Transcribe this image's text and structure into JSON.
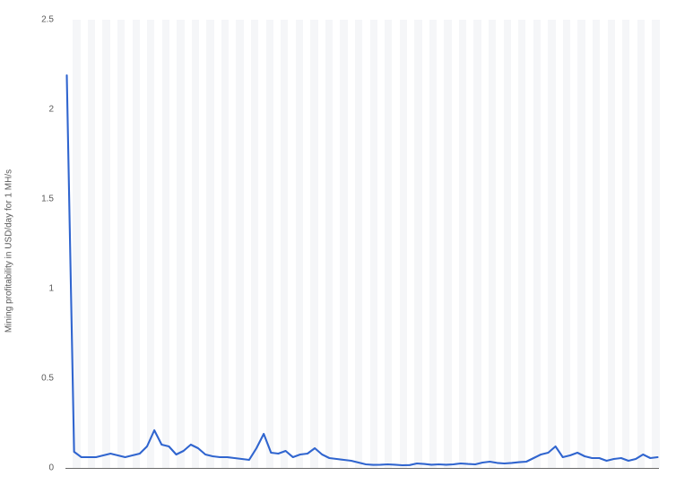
{
  "chart": {
    "type": "line",
    "background_color": "#ffffff",
    "stripe_colors": [
      "#ffffff",
      "#f5f6f8"
    ],
    "stripe_count": 80,
    "y_axis": {
      "title": "Mining profitability in USD/day for 1 MH/s",
      "title_fontsize": 10,
      "label_color": "#5a5a5a",
      "ylim": [
        0,
        2.5
      ],
      "tick_step": 0.5,
      "ticks": [
        "0",
        "0.5",
        "1",
        "1.5",
        "2",
        "2.5"
      ],
      "tick_fontsize": 10
    },
    "axis_line_color": "#6a6a6a",
    "series": {
      "color": "#3065cf",
      "line_width": 2.1,
      "values": [
        2.19,
        0.09,
        0.06,
        0.06,
        0.06,
        0.07,
        0.08,
        0.07,
        0.06,
        0.07,
        0.08,
        0.12,
        0.21,
        0.13,
        0.12,
        0.075,
        0.095,
        0.13,
        0.11,
        0.075,
        0.065,
        0.06,
        0.06,
        0.055,
        0.05,
        0.045,
        0.11,
        0.19,
        0.085,
        0.08,
        0.095,
        0.06,
        0.075,
        0.08,
        0.11,
        0.075,
        0.055,
        0.05,
        0.045,
        0.04,
        0.03,
        0.02,
        0.017,
        0.018,
        0.02,
        0.018,
        0.015,
        0.016,
        0.025,
        0.022,
        0.018,
        0.02,
        0.018,
        0.02,
        0.025,
        0.022,
        0.02,
        0.03,
        0.035,
        0.028,
        0.025,
        0.028,
        0.032,
        0.035,
        0.055,
        0.075,
        0.085,
        0.12,
        0.06,
        0.07,
        0.085,
        0.065,
        0.055,
        0.055,
        0.04,
        0.05,
        0.055,
        0.04,
        0.05,
        0.075,
        0.055,
        0.06
      ]
    }
  }
}
